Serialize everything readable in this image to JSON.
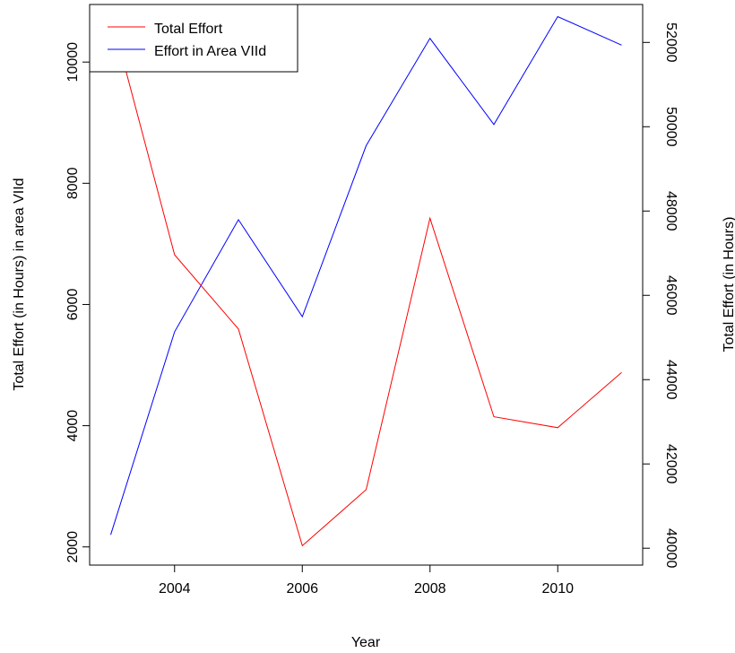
{
  "chart_data": {
    "type": "line",
    "title": "",
    "xlabel": "Year",
    "ylabel_left": "Total Effort (in Hours) in area VIId",
    "ylabel_right": "Total Effort (in Hours)",
    "x": [
      2003,
      2004,
      2005,
      2006,
      2007,
      2008,
      2009,
      2010,
      2011
    ],
    "xlim": [
      2002.67,
      2011.33
    ],
    "x_ticks": [
      2004,
      2006,
      2008,
      2010
    ],
    "ylim_left": [
      1700,
      10950
    ],
    "y_ticks_left": [
      2000,
      4000,
      6000,
      8000,
      10000
    ],
    "ylim_right": [
      39600,
      52900
    ],
    "y_ticks_right": [
      40000,
      42000,
      44000,
      46000,
      48000,
      50000,
      52000
    ],
    "grid": false,
    "legend_position": "top-left",
    "series": [
      {
        "name": "Total Effort",
        "axis": "right",
        "color": "#ff0000",
        "values": [
          52690,
          46960,
          45200,
          40060,
          41390,
          47830,
          43120,
          42860,
          44170
        ]
      },
      {
        "name": "Effort in Area VIId",
        "axis": "left",
        "color": "#0000ff",
        "values": [
          2200,
          5550,
          7400,
          5800,
          8620,
          10390,
          8970,
          10750,
          10280
        ]
      }
    ]
  }
}
